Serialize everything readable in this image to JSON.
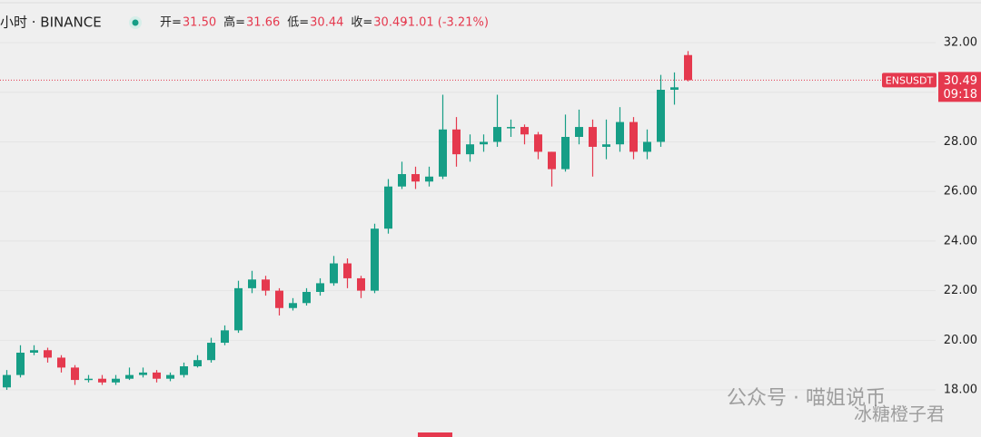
{
  "header": {
    "symbol": "小时 · BINANCE",
    "ohlc": [
      {
        "label": "开=",
        "value": "31.50"
      },
      {
        "label": "高=",
        "value": "31.66"
      },
      {
        "label": "低=",
        "value": "30.44"
      },
      {
        "label": "收=",
        "value": "30.49"
      }
    ],
    "change": "-1.01 (-3.21%)"
  },
  "watermark": {
    "account": "公众号 · 喵姐说币",
    "author": "冰糖橙子君"
  },
  "chart_data": {
    "type": "candlestick",
    "open": [
      18.1,
      18.6,
      19.5,
      19.6,
      19.3,
      18.9,
      18.4,
      18.45,
      18.3,
      18.45,
      18.6,
      18.7,
      18.45,
      18.6,
      18.95,
      19.2,
      19.9,
      20.4,
      22.1,
      22.45,
      22.0,
      21.3,
      21.5,
      21.95,
      22.3,
      23.1,
      22.5,
      22.0,
      24.5,
      26.2,
      26.7,
      26.4,
      26.6,
      28.5,
      27.5,
      27.9,
      28.0,
      28.6,
      28.6,
      28.3,
      27.6,
      26.9,
      28.2,
      28.6,
      27.8,
      27.9,
      28.8,
      27.6,
      28.0,
      30.1,
      31.5
    ],
    "high": [
      18.8,
      19.8,
      19.8,
      19.7,
      19.4,
      19.0,
      18.6,
      18.6,
      18.6,
      18.9,
      18.9,
      18.8,
      18.7,
      19.1,
      19.4,
      20.1,
      20.6,
      22.4,
      22.8,
      22.6,
      22.1,
      21.7,
      22.1,
      22.5,
      23.4,
      23.3,
      22.6,
      24.7,
      26.5,
      27.2,
      27.0,
      27.0,
      29.9,
      29.0,
      28.3,
      28.3,
      29.9,
      28.9,
      28.7,
      28.4,
      27.6,
      29.1,
      29.3,
      28.9,
      28.9,
      29.4,
      29.0,
      28.5,
      30.7,
      30.8,
      31.66
    ],
    "low": [
      18.0,
      18.5,
      19.4,
      19.1,
      18.7,
      18.2,
      18.3,
      18.2,
      18.2,
      18.4,
      18.5,
      18.3,
      18.35,
      18.5,
      18.9,
      19.1,
      19.8,
      20.3,
      21.9,
      21.8,
      21.0,
      21.2,
      21.4,
      21.8,
      22.2,
      22.1,
      21.7,
      21.9,
      24.3,
      26.1,
      26.1,
      26.2,
      26.5,
      27.0,
      27.2,
      27.6,
      27.8,
      28.2,
      27.9,
      27.3,
      26.2,
      26.8,
      27.9,
      26.6,
      27.3,
      27.6,
      27.3,
      27.3,
      27.8,
      29.5,
      30.44
    ],
    "close": [
      18.6,
      19.5,
      19.6,
      19.3,
      18.9,
      18.4,
      18.45,
      18.3,
      18.45,
      18.6,
      18.7,
      18.45,
      18.6,
      18.95,
      19.2,
      19.9,
      20.4,
      22.1,
      22.45,
      22.0,
      21.3,
      21.5,
      21.95,
      22.3,
      23.1,
      22.5,
      22.0,
      24.5,
      26.2,
      26.7,
      26.4,
      26.6,
      28.5,
      27.5,
      27.9,
      28.0,
      28.6,
      28.6,
      28.3,
      27.6,
      26.9,
      28.2,
      28.6,
      27.8,
      27.9,
      28.8,
      27.6,
      28.0,
      30.1,
      30.2,
      30.49
    ],
    "up_color": "#169e86",
    "down_color": "#e5394e",
    "ylim": [
      16.1,
      33.72
    ],
    "yticks": [
      {
        "value": 18,
        "label": "18.00"
      },
      {
        "value": 20,
        "label": "20.00"
      },
      {
        "value": 22,
        "label": "22.00"
      },
      {
        "value": 24,
        "label": "24.00"
      },
      {
        "value": 26,
        "label": "26.00"
      },
      {
        "value": 28,
        "label": "28.00"
      },
      {
        "value": 30,
        "label": "30.00"
      },
      {
        "value": 32,
        "label": "32.00"
      }
    ],
    "grid": true,
    "last_price": {
      "symbol": "ENSUSDT",
      "price": 30.49,
      "countdown": "09:18"
    }
  }
}
